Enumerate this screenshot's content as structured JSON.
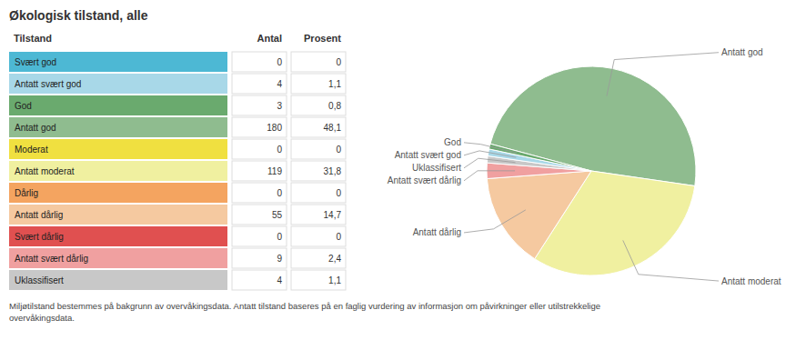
{
  "chart_data": {
    "type": "pie",
    "title": "Økologisk tilstand, alle",
    "categories": [
      "Antatt god",
      "Antatt moderat",
      "Antatt dårlig",
      "Antatt svært dårlig",
      "Uklassifisert",
      "Antatt svært god",
      "God"
    ],
    "values": [
      180,
      119,
      55,
      9,
      4,
      4,
      3
    ],
    "colors": [
      "#8fbc8f",
      "#f0f0a0",
      "#f5c9a0",
      "#f0a0a0",
      "#c8c8c8",
      "#a8d8e8",
      "#6aaa6e"
    ],
    "table": {
      "headers": [
        "Tilstand",
        "Antal",
        "Prosent"
      ],
      "labels": [
        "Svært god",
        "Antatt svært god",
        "God",
        "Antatt god",
        "Moderat",
        "Antatt moderat",
        "Dårlig",
        "Antatt dårlig",
        "Svært dårlig",
        "Antatt svært dårlig",
        "Uklassifisert"
      ],
      "antal": [
        0,
        4,
        3,
        180,
        0,
        119,
        0,
        55,
        0,
        9,
        4
      ],
      "prosent": [
        "0",
        "1,1",
        "0,8",
        "48,1",
        "0",
        "31,8",
        "0",
        "14,7",
        "0",
        "2,4",
        "1,1"
      ],
      "colors": [
        "#4db8d4",
        "#a8d8e8",
        "#6aaa6e",
        "#8fbc8f",
        "#f0e040",
        "#f0f0a0",
        "#f4a460",
        "#f5c9a0",
        "#e05050",
        "#f0a0a0",
        "#c8c8c8"
      ]
    },
    "footnote": "Miljøtilstand bestemmes på bakgrunn av overvåkingsdata. Antatt tilstand baseres på en faglig vurdering av informasjon om påvirkninger eller utilstrekkelige\novervåkingsdata."
  }
}
